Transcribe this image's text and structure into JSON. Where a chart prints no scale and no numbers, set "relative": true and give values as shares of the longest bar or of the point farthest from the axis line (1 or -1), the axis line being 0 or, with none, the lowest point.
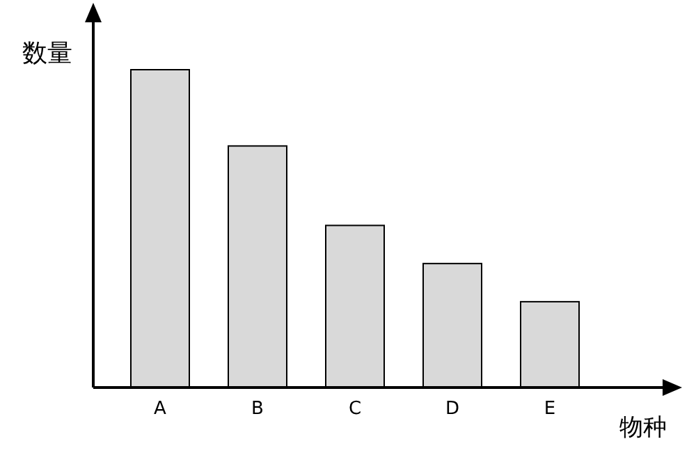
{
  "chart_data": {
    "type": "bar",
    "xlabel": "物种",
    "ylabel": "数量",
    "categories": [
      "A",
      "B",
      "C",
      "D",
      "E"
    ],
    "values": [
      1,
      0.76,
      0.51,
      0.39,
      0.27
    ],
    "color": "#d9d9d9",
    "relative": true
  }
}
